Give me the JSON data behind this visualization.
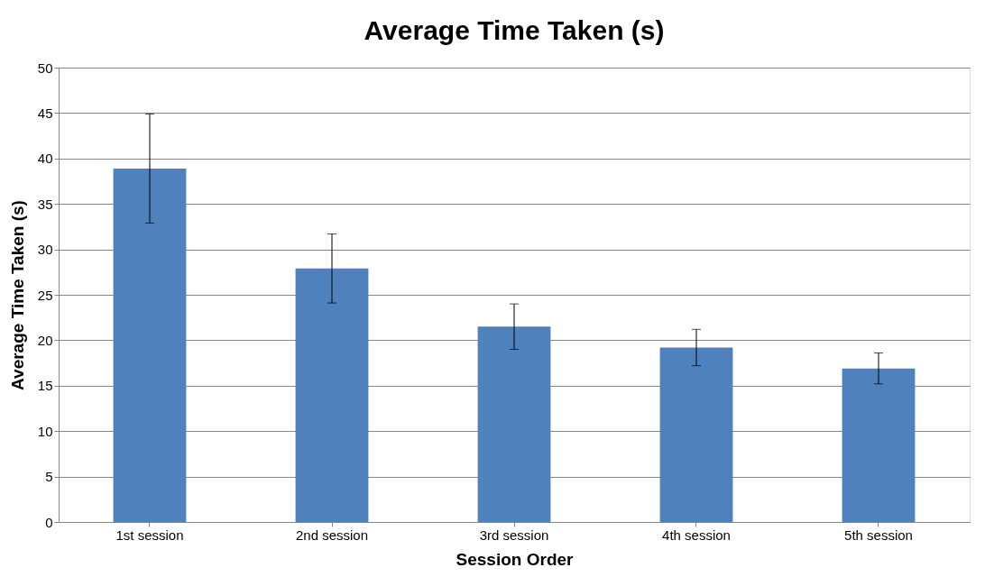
{
  "chart_data": {
    "type": "bar",
    "title": "Average Time Taken (s)",
    "xlabel": "Session Order",
    "ylabel": "Average Time Taken (s)",
    "categories": [
      "1st session",
      "2nd session",
      "3rd session",
      "4th session",
      "5th session"
    ],
    "values": [
      38.9,
      27.9,
      21.5,
      19.2,
      16.9
    ],
    "errors": [
      6,
      3.8,
      2.5,
      2,
      1.7
    ],
    "color": "#4f81bd",
    "ylim": [
      0,
      50
    ],
    "yticks": [
      0,
      5,
      10,
      15,
      20,
      25,
      30,
      35,
      40,
      45,
      50
    ],
    "grid": "y"
  }
}
